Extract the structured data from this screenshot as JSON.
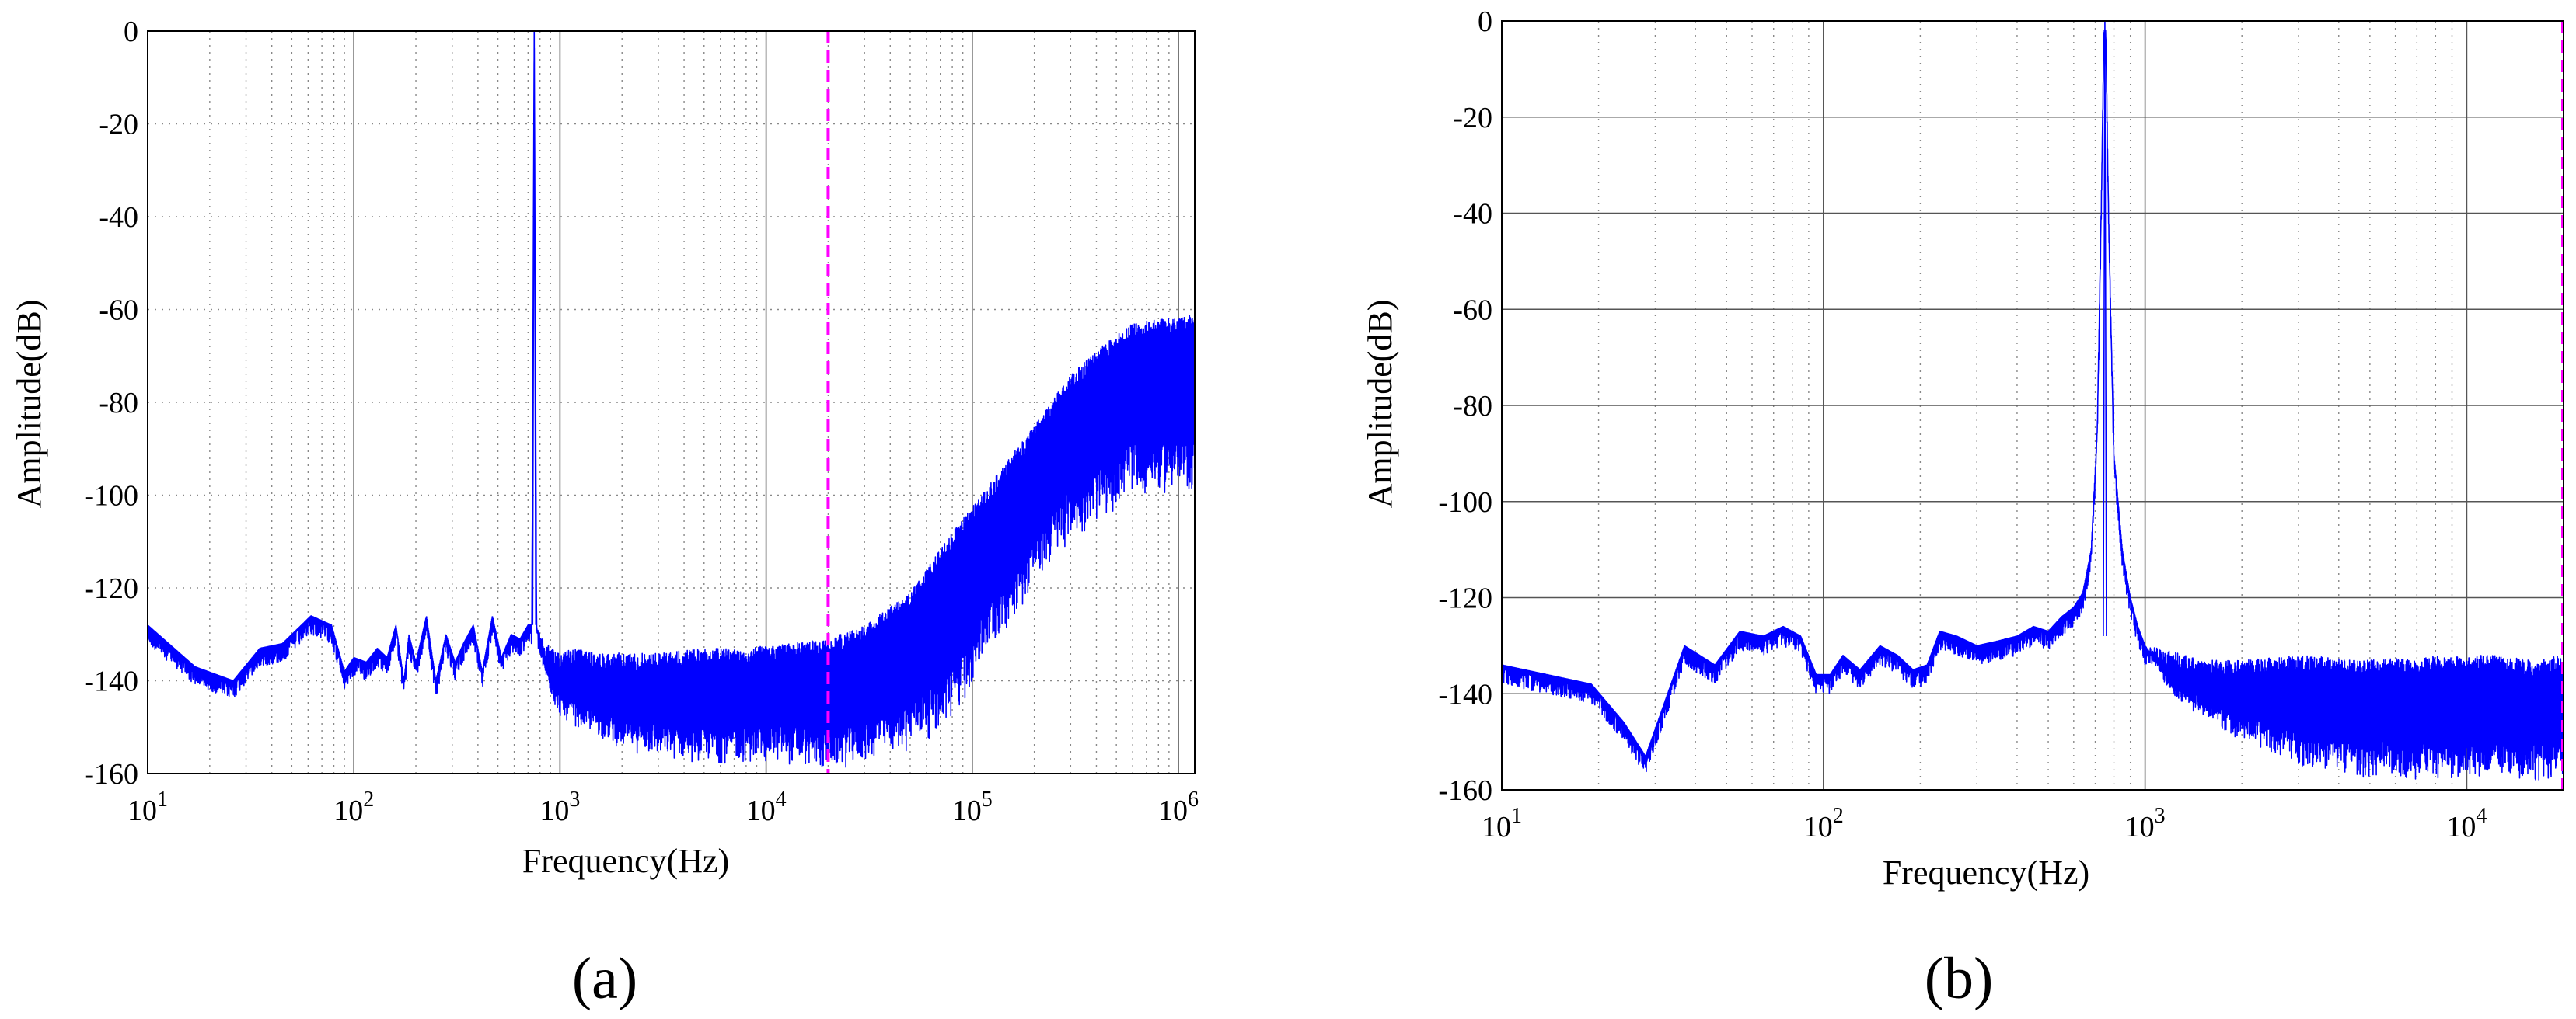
{
  "figure": {
    "captions": [
      "(a)",
      "(b)"
    ]
  },
  "chart_data": [
    {
      "type": "line",
      "panel": "(a)",
      "title": "",
      "xlabel": "Frequency(Hz)",
      "ylabel": "Amplitude(dB)",
      "xscale": "log",
      "xlim": [
        10,
        1200000
      ],
      "ylim": [
        -160,
        0
      ],
      "xticks": [
        {
          "base": "10",
          "exp": "1"
        },
        {
          "base": "10",
          "exp": "2"
        },
        {
          "base": "10",
          "exp": "3"
        },
        {
          "base": "10",
          "exp": "4"
        },
        {
          "base": "10",
          "exp": "5"
        },
        {
          "base": "10",
          "exp": "6"
        }
      ],
      "yticks": [
        "0",
        "-20",
        "-40",
        "-60",
        "-80",
        "-100",
        "-120",
        "-140",
        "-160"
      ],
      "grid": true,
      "series_color": "#0000ff",
      "marker_color": "#ff00ff",
      "cutoff_line_x": 20000,
      "tone_hz": 750,
      "series": [
        {
          "style": "solid",
          "x": [
            10,
            17,
            26,
            35,
            45,
            62,
            78,
            90,
            100,
            115,
            130,
            145,
            160,
            175,
            185,
            200,
            225,
            250,
            280,
            310,
            340,
            380,
            420,
            470,
            520,
            580,
            640,
            700,
            730,
            750,
            770,
            800,
            860,
            930,
            1000,
            1200,
            1500,
            2000,
            3000,
            5000,
            8000,
            12000,
            20000,
            30000,
            50000,
            80000,
            120000,
            200000,
            300000,
            450000,
            600000,
            800000,
            1000000,
            1200000
          ],
          "y": [
            -128,
            -137,
            -140,
            -133,
            -132,
            -126,
            -128,
            -138,
            -135,
            -136,
            -133,
            -135,
            -128,
            -140,
            -130,
            -136,
            -126,
            -140,
            -130,
            -136,
            -132,
            -128,
            -138,
            -126,
            -135,
            -130,
            -131,
            -128,
            -128,
            0,
            -128,
            -130,
            -132,
            -133,
            -134,
            -133,
            -134,
            -134,
            -134,
            -133,
            -133,
            -132,
            -131,
            -128,
            -121,
            -108,
            -98,
            -85,
            -74,
            -67,
            -63,
            -62,
            -62,
            -61
          ],
          "lower_envelope": [
            -128,
            -137,
            -140,
            -133,
            -132,
            -126,
            -128,
            -138,
            -135,
            -136,
            -133,
            -135,
            -128,
            -140,
            -130,
            -136,
            -126,
            -140,
            -130,
            -136,
            -132,
            -128,
            -138,
            -126,
            -135,
            -130,
            -131,
            -128,
            -128,
            0,
            -128,
            -135,
            -140,
            -145,
            -148,
            -150,
            -152,
            -155,
            -157,
            -158,
            -158,
            -158,
            -160,
            -158,
            -155,
            -150,
            -135,
            -120,
            -110,
            -105,
            -100,
            -100,
            -100,
            -100
          ]
        }
      ]
    },
    {
      "type": "line",
      "panel": "(b)",
      "title": "",
      "xlabel": "Frequency(Hz)",
      "ylabel": "Amplitude(dB)",
      "xscale": "log",
      "xlim": [
        10,
        20000
      ],
      "ylim": [
        -160,
        0
      ],
      "xticks": [
        {
          "base": "10",
          "exp": "1"
        },
        {
          "base": "10",
          "exp": "2"
        },
        {
          "base": "10",
          "exp": "3"
        },
        {
          "base": "10",
          "exp": "4"
        }
      ],
      "yticks": [
        "0",
        "-20",
        "-40",
        "-60",
        "-80",
        "-100",
        "-120",
        "-140",
        "-160"
      ],
      "grid": true,
      "series_color": "#0000ff",
      "marker_color": "#ff00ff",
      "cutoff_line_x": 19900,
      "tone_hz": 750,
      "series": [
        {
          "style": "solid",
          "x": [
            10,
            19,
            24,
            28,
            37,
            46,
            55,
            65,
            75,
            85,
            95,
            105,
            115,
            130,
            150,
            170,
            190,
            210,
            230,
            260,
            300,
            350,
            400,
            450,
            500,
            550,
            600,
            640,
            680,
            710,
            730,
            745,
            755,
            770,
            800,
            850,
            900,
            950,
            1000,
            1200,
            1500,
            2000,
            3000,
            5000,
            8000,
            12000,
            16000,
            20000
          ],
          "y": [
            -134,
            -138,
            -146,
            -153,
            -130,
            -134,
            -127,
            -128,
            -126,
            -128,
            -136,
            -136,
            -132,
            -135,
            -130,
            -132,
            -135,
            -134,
            -127,
            -128,
            -130,
            -129,
            -128,
            -126,
            -127,
            -124,
            -122,
            -119,
            -110,
            -85,
            -40,
            -2,
            -2,
            -40,
            -90,
            -110,
            -120,
            -126,
            -130,
            -131,
            -133,
            -133,
            -132,
            -133,
            -132,
            -132,
            -133,
            -132
          ],
          "lower_envelope": [
            -134,
            -138,
            -146,
            -153,
            -130,
            -134,
            -127,
            -128,
            -126,
            -128,
            -136,
            -136,
            -132,
            -135,
            -130,
            -132,
            -135,
            -134,
            -127,
            -128,
            -130,
            -129,
            -128,
            -126,
            -127,
            -124,
            -122,
            -119,
            -110,
            -85,
            -40,
            -2,
            -2,
            -40,
            -90,
            -110,
            -120,
            -126,
            -130,
            -140,
            -145,
            -150,
            -155,
            -158,
            -158,
            -158,
            -158,
            -158
          ]
        }
      ]
    }
  ]
}
